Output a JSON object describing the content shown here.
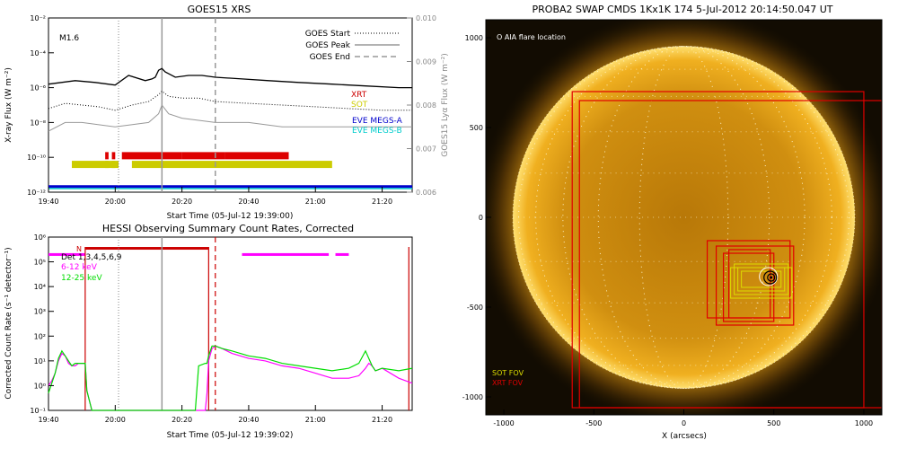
{
  "chart_data": [
    {
      "type": "line",
      "title": "GOES15 XRS",
      "xlabel": "Start Time (05-Jul-12 19:39:00)",
      "ylabel": "X-ray Flux (W m⁻²)",
      "ylabel_right": "GOES15 Lyα Flux (W m⁻²)",
      "xticks": [
        "19:40",
        "20:00",
        "20:20",
        "20:40",
        "21:00",
        "21:20"
      ],
      "xticks_min": [
        0,
        20,
        40,
        60,
        80,
        100
      ],
      "xlim_min": [
        0,
        109
      ],
      "yticks": [
        "10⁻¹²",
        "10⁻¹⁰",
        "10⁻⁸",
        "10⁻⁶",
        "10⁻⁴",
        "10⁻²"
      ],
      "ylim_exp": [
        -12,
        -2
      ],
      "yticks_right": [
        "0.006",
        "0.007",
        "0.008",
        "0.009",
        "0.010"
      ],
      "ylim_right": [
        0.006,
        0.01
      ],
      "flare_class": "M1.6",
      "legend": [
        "GOES Start",
        "GOES Peak",
        "GOES End"
      ],
      "markers_min": {
        "start": 21,
        "peak": 34,
        "end": 50
      },
      "series": [
        {
          "name": "",
          "color": "#000000",
          "x": [
            0,
            8,
            14,
            20,
            24,
            29,
            31,
            32,
            33,
            34,
            35,
            36,
            38,
            42,
            46,
            50,
            58,
            66,
            75,
            85,
            95,
            105,
            109
          ],
          "y": [
            -5.8,
            -5.6,
            -5.7,
            -5.85,
            -5.3,
            -5.6,
            -5.5,
            -5.4,
            -5.0,
            -4.9,
            -5.1,
            -5.2,
            -5.4,
            -5.3,
            -5.3,
            -5.4,
            -5.5,
            -5.6,
            -5.7,
            -5.8,
            -5.9,
            -6.0,
            -6.0
          ]
        },
        {
          "name": "",
          "color": "#000000",
          "style": "dotted",
          "x": [
            0,
            5,
            10,
            15,
            20,
            25,
            30,
            33,
            34,
            36,
            40,
            45,
            50,
            60,
            70,
            80,
            90,
            100,
            109
          ],
          "y": [
            -7.2,
            -6.9,
            -7.0,
            -7.1,
            -7.3,
            -7.0,
            -6.8,
            -6.4,
            -6.2,
            -6.5,
            -6.6,
            -6.6,
            -6.8,
            -6.9,
            -7.0,
            -7.1,
            -7.2,
            -7.3,
            -7.3
          ]
        },
        {
          "name": "",
          "color": "#999999",
          "x": [
            0,
            5,
            10,
            20,
            30,
            33,
            34,
            36,
            40,
            50,
            60,
            70,
            80,
            90,
            100,
            109
          ],
          "y": [
            0.0074,
            0.0076,
            0.0076,
            0.0075,
            0.0076,
            0.0078,
            0.008,
            0.0078,
            0.0077,
            0.0076,
            0.0076,
            0.0075,
            0.0075,
            0.0075,
            0.0075,
            0.0075
          ]
        }
      ],
      "coverage_labels": [
        {
          "name": "XRT",
          "color": "#cc0000"
        },
        {
          "name": "SOT",
          "color": "#cccc00"
        },
        {
          "name": "EVE MEGS-A",
          "color": "#0000cc"
        },
        {
          "name": "EVE MEGS-B",
          "color": "#00cccc"
        }
      ],
      "coverage": {
        "xrt": [
          [
            17,
            18
          ],
          [
            19,
            20
          ],
          [
            22,
            40
          ],
          [
            40,
            53
          ],
          [
            53,
            72
          ]
        ],
        "sot": [
          [
            7,
            21
          ],
          [
            17,
            18
          ],
          [
            19,
            20
          ],
          [
            25,
            85
          ]
        ],
        "eve_megs_a": [
          [
            0,
            109
          ]
        ],
        "eve_megs_b": [
          [
            0,
            109
          ]
        ]
      }
    },
    {
      "type": "line",
      "title": "HESSI Observing Summary Count Rates, Corrected",
      "xlabel": "Start Time (05-Jul-12 19:39:02)",
      "ylabel": "Corrected Count Rate (s⁻¹ detector⁻¹)",
      "xticks": [
        "19:40",
        "20:00",
        "20:20",
        "20:40",
        "21:00",
        "21:20"
      ],
      "xticks_min": [
        0,
        20,
        40,
        60,
        80,
        100
      ],
      "xlim_min": [
        0,
        109
      ],
      "yticks": [
        "10⁻¹",
        "10⁰",
        "10¹",
        "10²",
        "10³",
        "10⁴",
        "10⁵",
        "10⁶"
      ],
      "ylim_exp": [
        -1,
        6
      ],
      "flag_label": "N",
      "legend": [
        {
          "name": "Det 1,3,4,5,6,9",
          "color": "#000000"
        },
        {
          "name": "6-12 keV",
          "color": "#ff00ff"
        },
        {
          "name": "12-25 keV",
          "color": "#00dd00"
        }
      ],
      "markers_min": {
        "start": 21,
        "peak": 34,
        "end": 50
      },
      "red_lines_min": [
        11,
        48,
        108
      ],
      "night_bar_min": [
        [
          11,
          48
        ]
      ],
      "magenta_bar_min": [
        [
          58,
          84
        ],
        [
          86,
          90
        ]
      ],
      "series": [
        {
          "name": "6-12 keV",
          "color": "#ff00ff",
          "x": [
            0,
            1,
            2,
            3,
            4,
            5,
            6,
            7,
            8,
            9,
            10,
            11,
            11.5,
            13,
            16,
            20,
            25,
            30,
            35,
            40,
            45,
            47,
            47.5,
            48,
            49,
            50,
            52,
            55,
            60,
            65,
            70,
            75,
            80,
            85,
            90,
            93,
            95,
            96,
            97,
            98,
            100,
            105,
            109
          ],
          "y": [
            0.0,
            0.2,
            0.5,
            1.0,
            1.3,
            1.2,
            0.9,
            0.8,
            0.8,
            0.9,
            0.9,
            0.9,
            -0.2,
            -1.0,
            -1.0,
            -1.0,
            -1.0,
            -1.0,
            -1.0,
            -1.0,
            -1.0,
            -1.0,
            -0.3,
            1.0,
            1.5,
            1.6,
            1.5,
            1.3,
            1.1,
            1.0,
            0.8,
            0.7,
            0.5,
            0.3,
            0.3,
            0.4,
            0.7,
            0.9,
            0.8,
            0.6,
            0.7,
            0.3,
            0.1
          ]
        },
        {
          "name": "12-25 keV",
          "color": "#00dd00",
          "x": [
            0,
            1,
            2,
            3,
            4,
            5,
            6,
            7,
            8,
            9,
            10,
            11,
            11.5,
            13,
            16,
            20,
            25,
            30,
            35,
            40,
            44,
            45,
            47,
            47.5,
            48,
            49,
            50,
            52,
            55,
            60,
            65,
            70,
            75,
            80,
            85,
            90,
            93,
            95,
            96,
            97,
            98,
            100,
            105,
            109
          ],
          "y": [
            -0.3,
            0.1,
            0.5,
            1.1,
            1.4,
            1.2,
            1.0,
            0.8,
            0.9,
            0.9,
            0.9,
            0.9,
            -0.2,
            -1.0,
            -1.0,
            -1.0,
            -1.0,
            -1.0,
            -1.0,
            -1.0,
            -1.0,
            0.8,
            0.9,
            0.9,
            1.2,
            1.6,
            1.6,
            1.5,
            1.4,
            1.2,
            1.1,
            0.9,
            0.8,
            0.7,
            0.6,
            0.7,
            0.9,
            1.4,
            1.1,
            0.8,
            0.6,
            0.7,
            0.6,
            0.7
          ]
        }
      ]
    },
    {
      "type": "image-overlay",
      "title": "PROBA2 SWAP CMDS 1Kx1K 174   5-Jul-2012 20:14:50.047 UT",
      "xlabel": "X (arcsecs)",
      "xticks": [
        "-1000",
        "-500",
        "0",
        "500",
        "1000"
      ],
      "yticks": [
        "-1000",
        "-500",
        "0",
        "500",
        "1000"
      ],
      "xlim": [
        -1100,
        1100
      ],
      "ylim": [
        -1100,
        1100
      ],
      "solar_radius": 950,
      "annotation": "O AIA flare location",
      "legend": [
        {
          "name": "SOT FOV",
          "color": "#dddd00"
        },
        {
          "name": "XRT FOV",
          "color": "#dd0000"
        }
      ],
      "aia_location": [
        470,
        -330
      ],
      "xrt_fov": [
        [
          -620,
          -1060,
          1000,
          700
        ],
        [
          -580,
          -1060,
          1100,
          650
        ],
        [
          130,
          -560,
          590,
          -130
        ],
        [
          180,
          -600,
          610,
          -160
        ],
        [
          220,
          -580,
          500,
          -200
        ],
        [
          250,
          -560,
          480,
          -180
        ]
      ],
      "sot_fov": [
        [
          260,
          -450,
          600,
          -280
        ],
        [
          280,
          -430,
          580,
          -260
        ],
        [
          300,
          -410,
          560,
          -280
        ],
        [
          320,
          -390,
          540,
          -300
        ]
      ]
    }
  ]
}
